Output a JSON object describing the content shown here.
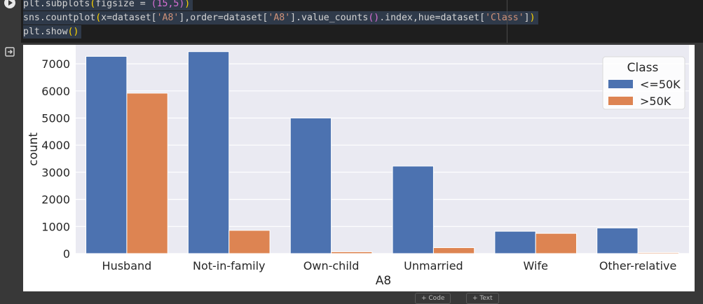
{
  "code": {
    "line1": {
      "fn": "plt.subplots",
      "open": "(",
      "arg": "figsize = ",
      "tuple": "(15,5)",
      "close": ")"
    },
    "line2": {
      "pre": "sns.countplot",
      "open": "(",
      "a": "x=dataset[",
      "s1": "'A8'",
      "b": "],order=dataset[",
      "s2": "'A8'",
      "c": "].value_counts",
      "p": "()",
      "d": ".index,hue=dataset[",
      "s3": "'Class'",
      "e": "]",
      "close": ")"
    },
    "line3": {
      "fn": "plt.show",
      "paren": "()"
    }
  },
  "footer": {
    "add_code": "+ Code",
    "add_text": "+ Text"
  },
  "chart_data": {
    "type": "bar",
    "xlabel": "A8",
    "ylabel": "count",
    "ylim": [
      0,
      7700
    ],
    "yticks": [
      "0",
      "1000",
      "2000",
      "3000",
      "4000",
      "5000",
      "6000",
      "7000"
    ],
    "categories": [
      "Husband",
      "Not-in-family",
      "Own-child",
      "Unmarried",
      "Wife",
      "Other-relative"
    ],
    "legend_title": "Class",
    "legend_placement": "top-right",
    "grid": "horizontal",
    "series": [
      {
        "name": "<=50K",
        "color": "#4c72b0",
        "values": [
          7275,
          7449,
          5001,
          3228,
          823,
          944
        ]
      },
      {
        "name": ">50K",
        "color": "#dd8452",
        "values": [
          5918,
          856,
          67,
          218,
          745,
          37
        ]
      }
    ]
  }
}
